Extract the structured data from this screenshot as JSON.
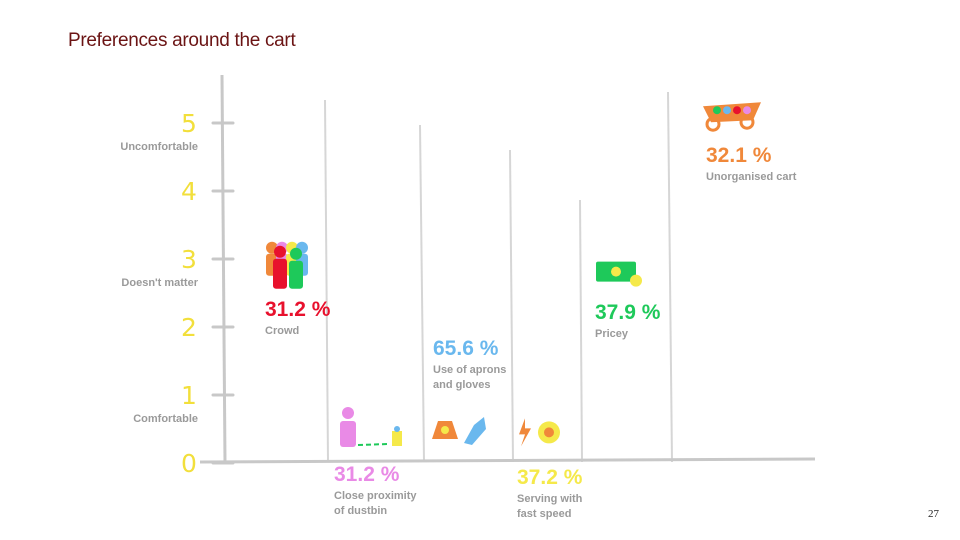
{
  "title": "Preferences around the cart",
  "page_number": "27",
  "chart_data": {
    "type": "placement",
    "ylim": [
      0,
      5.5
    ],
    "yticks": [
      0,
      1,
      2,
      3,
      4,
      5
    ],
    "y_labels": [
      {
        "value": 1,
        "label": "Comfortable"
      },
      {
        "value": 3,
        "label": "Doesn't matter"
      },
      {
        "value": 5,
        "label": "Uncomfortable"
      }
    ],
    "categories": [
      "Crowd",
      "Close proximity of dustbin",
      "Use of aprons and gloves",
      "Serving with fast speed",
      "Pricey",
      "Unorganised cart"
    ],
    "values": [
      31.2,
      31.2,
      65.6,
      37.2,
      37.9,
      32.1
    ],
    "value_labels": [
      "31.2 %",
      "31.2 %",
      "65.6 %",
      "37.2 %",
      "37.9 %",
      "32.1 %"
    ],
    "levels": [
      2.9,
      0.5,
      0.5,
      0.45,
      2.8,
      5.1
    ],
    "colors": [
      "#e8112d",
      "#e98ae6",
      "#6ab8ee",
      "#f5e94a",
      "#1ec95a",
      "#f0883a"
    ]
  }
}
